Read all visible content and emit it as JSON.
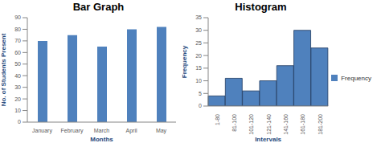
{
  "chart_data": [
    {
      "type": "bar",
      "title": "Bar Graph",
      "x_label": "Months",
      "y_label": "No. of Students Present",
      "categories": [
        "January",
        "February",
        "March",
        "April",
        "May"
      ],
      "values": [
        70,
        75,
        65,
        80,
        82
      ],
      "color": "#4f81bd",
      "ylim": [
        0,
        90
      ],
      "yticks": [
        0,
        10,
        20,
        30,
        40,
        50,
        60,
        70,
        80,
        90
      ],
      "grid": false
    },
    {
      "type": "histogram",
      "title": "Histogram",
      "x_label": "Intervals",
      "y_label": "Frequency",
      "categories": [
        "1-80",
        "81-100",
        "101-120",
        "121-140",
        "141-160",
        "161-180",
        "181-200"
      ],
      "series": [
        {
          "name": "Frequency",
          "color": "#4f81bd",
          "values": [
            4,
            11,
            6,
            10,
            16,
            30,
            23
          ]
        }
      ],
      "ylim": [
        0,
        35
      ],
      "yticks": [
        0,
        5,
        10,
        15,
        20,
        25,
        30,
        35
      ],
      "grid": false,
      "legend": "right"
    }
  ]
}
